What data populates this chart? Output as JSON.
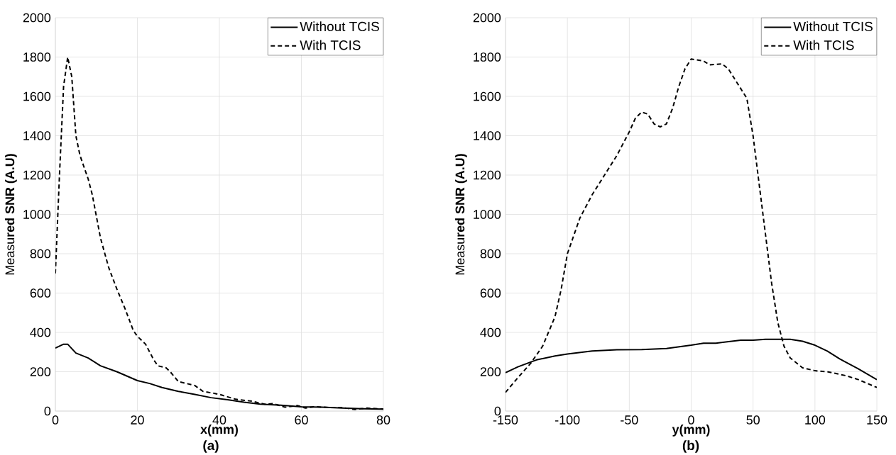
{
  "chart_data": [
    {
      "type": "line",
      "xlabel": "x(mm)",
      "ylabel": "Measu**red SNR (A.U)**",
      "annotations": [
        "(a)"
      ],
      "xlim": [
        0,
        80
      ],
      "xticks": [
        0,
        20,
        40,
        60,
        80
      ],
      "ylim": [
        0,
        2000
      ],
      "yticks": [
        0,
        200,
        400,
        600,
        800,
        1000,
        1200,
        1400,
        1600,
        1800,
        2000
      ],
      "grid": true,
      "legend": "top right",
      "series": [
        {
          "name": "Without TCIS",
          "color": "#000000",
          "line_style": "solid",
          "x": [
            0,
            2,
            3,
            5,
            8,
            11,
            15,
            20,
            23,
            26,
            30,
            34,
            38,
            42,
            46,
            50,
            55,
            60,
            65,
            70,
            75,
            80
          ],
          "values": [
            320,
            340,
            340,
            295,
            270,
            230,
            200,
            155,
            140,
            120,
            100,
            85,
            68,
            58,
            45,
            35,
            30,
            22,
            20,
            15,
            12,
            10
          ]
        },
        {
          "name": "With TCIS",
          "color": "#000000",
          "line_style": "dashed",
          "x": [
            0,
            1,
            2,
            3,
            4,
            5,
            6,
            8,
            9,
            11,
            13,
            15,
            17,
            19,
            20,
            22,
            24,
            25,
            27,
            28,
            30,
            32,
            34,
            36,
            40,
            44,
            48,
            51,
            53,
            56,
            59,
            61,
            63,
            67,
            70,
            73,
            76,
            80
          ],
          "values": [
            700,
            1200,
            1650,
            1800,
            1700,
            1400,
            1300,
            1180,
            1100,
            880,
            730,
            620,
            520,
            410,
            380,
            340,
            260,
            230,
            220,
            200,
            150,
            140,
            130,
            100,
            85,
            60,
            50,
            35,
            38,
            20,
            28,
            15,
            22,
            18,
            18,
            8,
            15,
            10
          ]
        }
      ]
    },
    {
      "type": "line",
      "xlabel": "y(mm)",
      "ylabel": "Measu**red SNR (A.U)**",
      "annotations": [
        "(b)"
      ],
      "xlim": [
        -150,
        150
      ],
      "xticks": [
        -150,
        -100,
        -50,
        0,
        50,
        100,
        150
      ],
      "ylim": [
        0,
        2000
      ],
      "yticks": [
        0,
        200,
        400,
        600,
        800,
        1000,
        1200,
        1400,
        1600,
        1800,
        2000
      ],
      "grid": true,
      "legend": "top right",
      "series": [
        {
          "name": "Without TCIS",
          "color": "#000000",
          "line_style": "solid",
          "x": [
            -150,
            -140,
            -125,
            -110,
            -100,
            -80,
            -60,
            -40,
            -20,
            0,
            10,
            20,
            40,
            50,
            60,
            80,
            90,
            100,
            110,
            120,
            135,
            150
          ],
          "values": [
            195,
            225,
            260,
            280,
            290,
            305,
            312,
            313,
            318,
            335,
            345,
            345,
            360,
            360,
            365,
            365,
            355,
            335,
            305,
            265,
            215,
            160
          ]
        },
        {
          "name": "With TCIS",
          "color": "#000000",
          "line_style": "dashed",
          "x": [
            -150,
            -140,
            -130,
            -120,
            -110,
            -105,
            -100,
            -90,
            -80,
            -70,
            -60,
            -50,
            -45,
            -40,
            -35,
            -30,
            -25,
            -20,
            -15,
            -10,
            -5,
            0,
            10,
            15,
            25,
            30,
            40,
            45,
            50,
            55,
            60,
            65,
            70,
            75,
            80,
            90,
            100,
            110,
            125,
            135,
            150
          ],
          "values": [
            95,
            170,
            240,
            330,
            480,
            620,
            800,
            980,
            1100,
            1200,
            1300,
            1420,
            1490,
            1520,
            1510,
            1460,
            1445,
            1460,
            1540,
            1650,
            1740,
            1790,
            1780,
            1760,
            1765,
            1740,
            1640,
            1590,
            1400,
            1150,
            900,
            650,
            450,
            330,
            270,
            220,
            205,
            200,
            180,
            160,
            120
          ]
        }
      ]
    }
  ]
}
